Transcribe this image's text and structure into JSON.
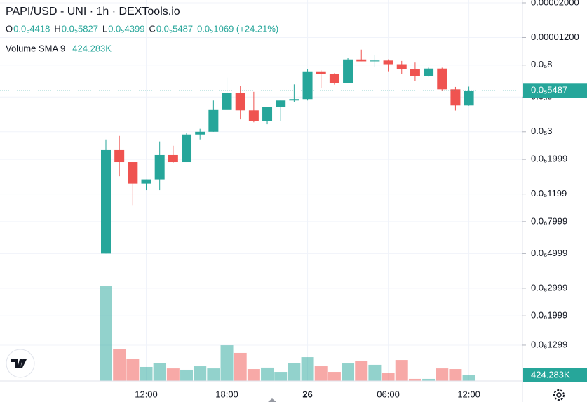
{
  "chart_data": {
    "type": "candlestick",
    "header": {
      "title": "PAPI/USD - UNI · 1h · DEXTools.io",
      "ohlc": [
        {
          "label": "O",
          "value": "0.0₅4418"
        },
        {
          "label": "H",
          "value": "0.0₅5827"
        },
        {
          "label": "L",
          "value": "0.0₅4399"
        },
        {
          "label": "C",
          "value": "0.0₅5487"
        }
      ],
      "change": "0.0₅1069 (+24.21%)"
    },
    "categories": [
      null,
      null,
      null,
      "12:00",
      null,
      null,
      null,
      null,
      null,
      "18:00",
      null,
      null,
      null,
      null,
      null,
      "26",
      null,
      null,
      null,
      null,
      null,
      "06:00",
      null,
      null,
      null,
      null,
      null,
      "12:00"
    ],
    "up_color": "#26a69a",
    "down_color": "#ef5350",
    "open": [
      5e-07,
      2.29e-06,
      1.92e-06,
      1.4e-06,
      1.49e-06,
      2.13e-06,
      1.92e-06,
      2.88e-06,
      3e-06,
      4.13e-06,
      5.32e-06,
      4.11e-06,
      3.5e-06,
      4.33e-06,
      4.75e-06,
      4.85e-06,
      7.29e-06,
      7e-06,
      6.12e-06,
      8.69e-06,
      8.45e-06,
      8.55e-06,
      8.1e-06,
      7.5e-06,
      6.8e-06,
      7.6e-06,
      5.6e-06,
      4.418e-06
    ],
    "high": [
      2.68e-06,
      2.82e-06,
      1.92e-06,
      1.49e-06,
      2.6e-06,
      2.44e-06,
      2.95e-06,
      3.13e-06,
      4.75e-06,
      6.65e-06,
      5.9e-06,
      5.4e-06,
      4.33e-06,
      4.75e-06,
      6.02e-06,
      7.5e-06,
      7.4e-06,
      7.1e-06,
      8.9e-06,
      1.004e-05,
      9.3e-06,
      8.7e-06,
      8.5e-06,
      8.3e-06,
      7.7e-06,
      7.7e-06,
      5.8e-06,
      5.827e-06
    ],
    "low": [
      5e-07,
      1.56e-06,
      1.02e-06,
      1.27e-06,
      1.27e-06,
      1.9e-06,
      1.92e-06,
      2.68e-06,
      3e-06,
      4.13e-06,
      3.6e-06,
      3.45e-06,
      3.35e-06,
      3.5e-06,
      4.65e-06,
      4.75e-06,
      5.7e-06,
      6e-06,
      6.12e-06,
      8.45e-06,
      7.8e-06,
      7.3e-06,
      7e-06,
      6.3e-06,
      6.75e-06,
      5.49e-06,
      4.1e-06,
      4.399e-06
    ],
    "close": [
      2.29e-06,
      1.92e-06,
      1.4e-06,
      1.49e-06,
      2.13e-06,
      1.92e-06,
      2.88e-06,
      3e-06,
      4.13e-06,
      5.32e-06,
      4.11e-06,
      3.5e-06,
      4.33e-06,
      4.75e-06,
      4.85e-06,
      7.29e-06,
      7e-06,
      6.12e-06,
      8.69e-06,
      8.45e-06,
      8.55e-06,
      8.1e-06,
      7.5e-06,
      6.8e-06,
      7.6e-06,
      5.6e-06,
      4.418e-06,
      5.487e-06
    ],
    "volume": {
      "name": "Volume SMA 9",
      "axis": "y2",
      "values": [
        7080000,
        2360000,
        1630000,
        1050000,
        1360000,
        940000,
        840000,
        1100000,
        940000,
        2670000,
        2100000,
        890000,
        1000000,
        680000,
        1360000,
        1780000,
        1100000,
        680000,
        1310000,
        1470000,
        1210000,
        580000,
        1570000,
        160000,
        160000,
        940000,
        890000,
        424283
      ],
      "value_labels": [
        null,
        null,
        null,
        null,
        null,
        null,
        null,
        null,
        null,
        null,
        null,
        null,
        null,
        null,
        null,
        null,
        null,
        null,
        null,
        null,
        null,
        null,
        null,
        null,
        null,
        null,
        null,
        "424.283K"
      ]
    },
    "log_scale": true,
    "grid": true,
    "ylim": [
      7.67e-08,
      2.084e-05
    ],
    "yticks": [
      {
        "value": 2e-05,
        "label": "0.00002000"
      },
      {
        "value": 1.2e-05,
        "label": "0.00001200"
      },
      {
        "value": 8e-06,
        "label": "0.0₅8"
      },
      {
        "value": 5e-06,
        "label": "0.0₅5"
      },
      {
        "value": 3e-06,
        "label": "0.0₅3"
      },
      {
        "value": 1.999e-06,
        "label": "0.0₅1999"
      },
      {
        "value": 1.199e-06,
        "label": "0.0₅1199"
      },
      {
        "value": 7.999e-07,
        "label": "0.0₆7999"
      },
      {
        "value": 4.999e-07,
        "label": "0.0₆4999"
      },
      {
        "value": 2.999e-07,
        "label": "0.0₆2999"
      },
      {
        "value": 1.999e-07,
        "label": "0.0₆1999"
      },
      {
        "value": 1.299e-07,
        "label": "0.0₆1299"
      }
    ],
    "y2lim": [
      0,
      7500000
    ]
  }
}
